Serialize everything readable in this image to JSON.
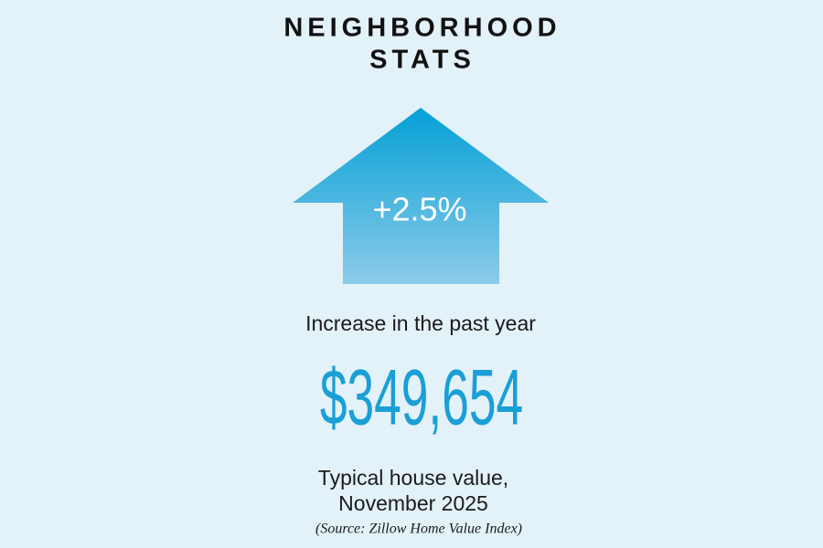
{
  "header": {
    "title_lines": [
      "NEIGHBORHOOD",
      "STATS"
    ]
  },
  "arrow": {
    "label": "+2.5%"
  },
  "change_caption": "Increase in the past year",
  "value": "$349,654",
  "value_caption_lines": [
    "Typical house value,",
    "November 2025"
  ],
  "source": "(Source: Zillow Home Value Index)"
}
